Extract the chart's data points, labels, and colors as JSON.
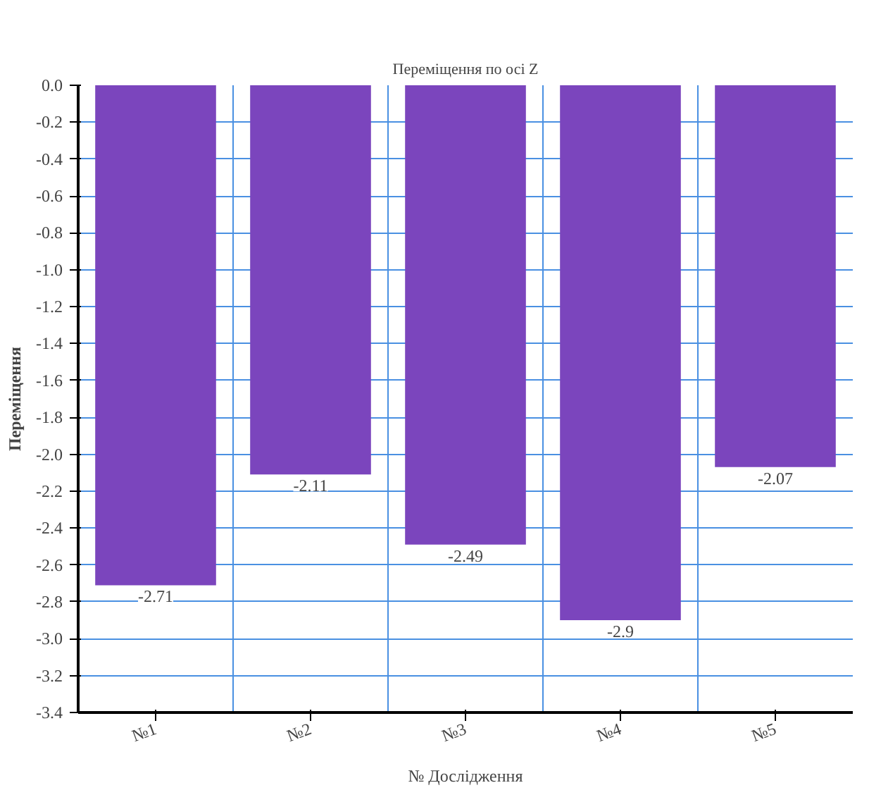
{
  "chart_data": {
    "type": "bar",
    "title": "Переміщення по осі Z",
    "xlabel": "№ Дослідження",
    "ylabel": "Переміщення",
    "categories": [
      "№1",
      "№2",
      "№3",
      "№4",
      "№5"
    ],
    "values": [
      -2.71,
      -2.11,
      -2.49,
      -2.9,
      -2.07
    ],
    "color": "#7b45bd",
    "ylim": [
      -3.4,
      0
    ],
    "yticks": [
      {
        "value": 0,
        "label": "0.0"
      },
      {
        "value": -0.2,
        "label": "-0.2"
      },
      {
        "value": -0.4,
        "label": "-0.4"
      },
      {
        "value": -0.6,
        "label": "-0.6"
      },
      {
        "value": -0.8,
        "label": "-0.8"
      },
      {
        "value": -1.0,
        "label": "-1.0"
      },
      {
        "value": -1.2,
        "label": "-1.2"
      },
      {
        "value": -1.4,
        "label": "-1.4"
      },
      {
        "value": -1.6,
        "label": "-1.6"
      },
      {
        "value": -1.8,
        "label": "-1.8"
      },
      {
        "value": -2.0,
        "label": "-2.0"
      },
      {
        "value": -2.2,
        "label": "-2.2"
      },
      {
        "value": -2.4,
        "label": "-2.4"
      },
      {
        "value": -2.6,
        "label": "-2.6"
      },
      {
        "value": -2.8,
        "label": "-2.8"
      },
      {
        "value": -3.0,
        "label": "-3.0"
      },
      {
        "value": -3.2,
        "label": "-3.2"
      },
      {
        "value": -3.4,
        "label": "-3.4"
      }
    ],
    "grid": true,
    "data_labels": true
  }
}
